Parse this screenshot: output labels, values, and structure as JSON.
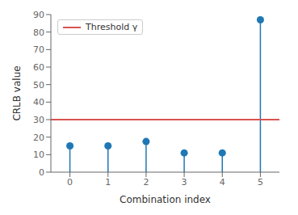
{
  "chart_data": {
    "type": "lollipop",
    "x": [
      0,
      1,
      2,
      3,
      4,
      5
    ],
    "values": [
      15,
      15,
      17.5,
      11,
      11,
      87
    ],
    "color": "#1f77b4",
    "threshold": {
      "value": 30,
      "label": "Threshold γ",
      "color": "#d9534f"
    },
    "xlabel": "Combination index",
    "ylabel": "CRLB value",
    "xlim": [
      -0.5,
      5.5
    ],
    "xticks": [
      0,
      1,
      2,
      3,
      4,
      5
    ],
    "ylim": [
      0,
      90
    ],
    "yticks": [
      0,
      10,
      20,
      30,
      40,
      50,
      60,
      70,
      80,
      90
    ],
    "legend": "upper left",
    "grid": false
  }
}
